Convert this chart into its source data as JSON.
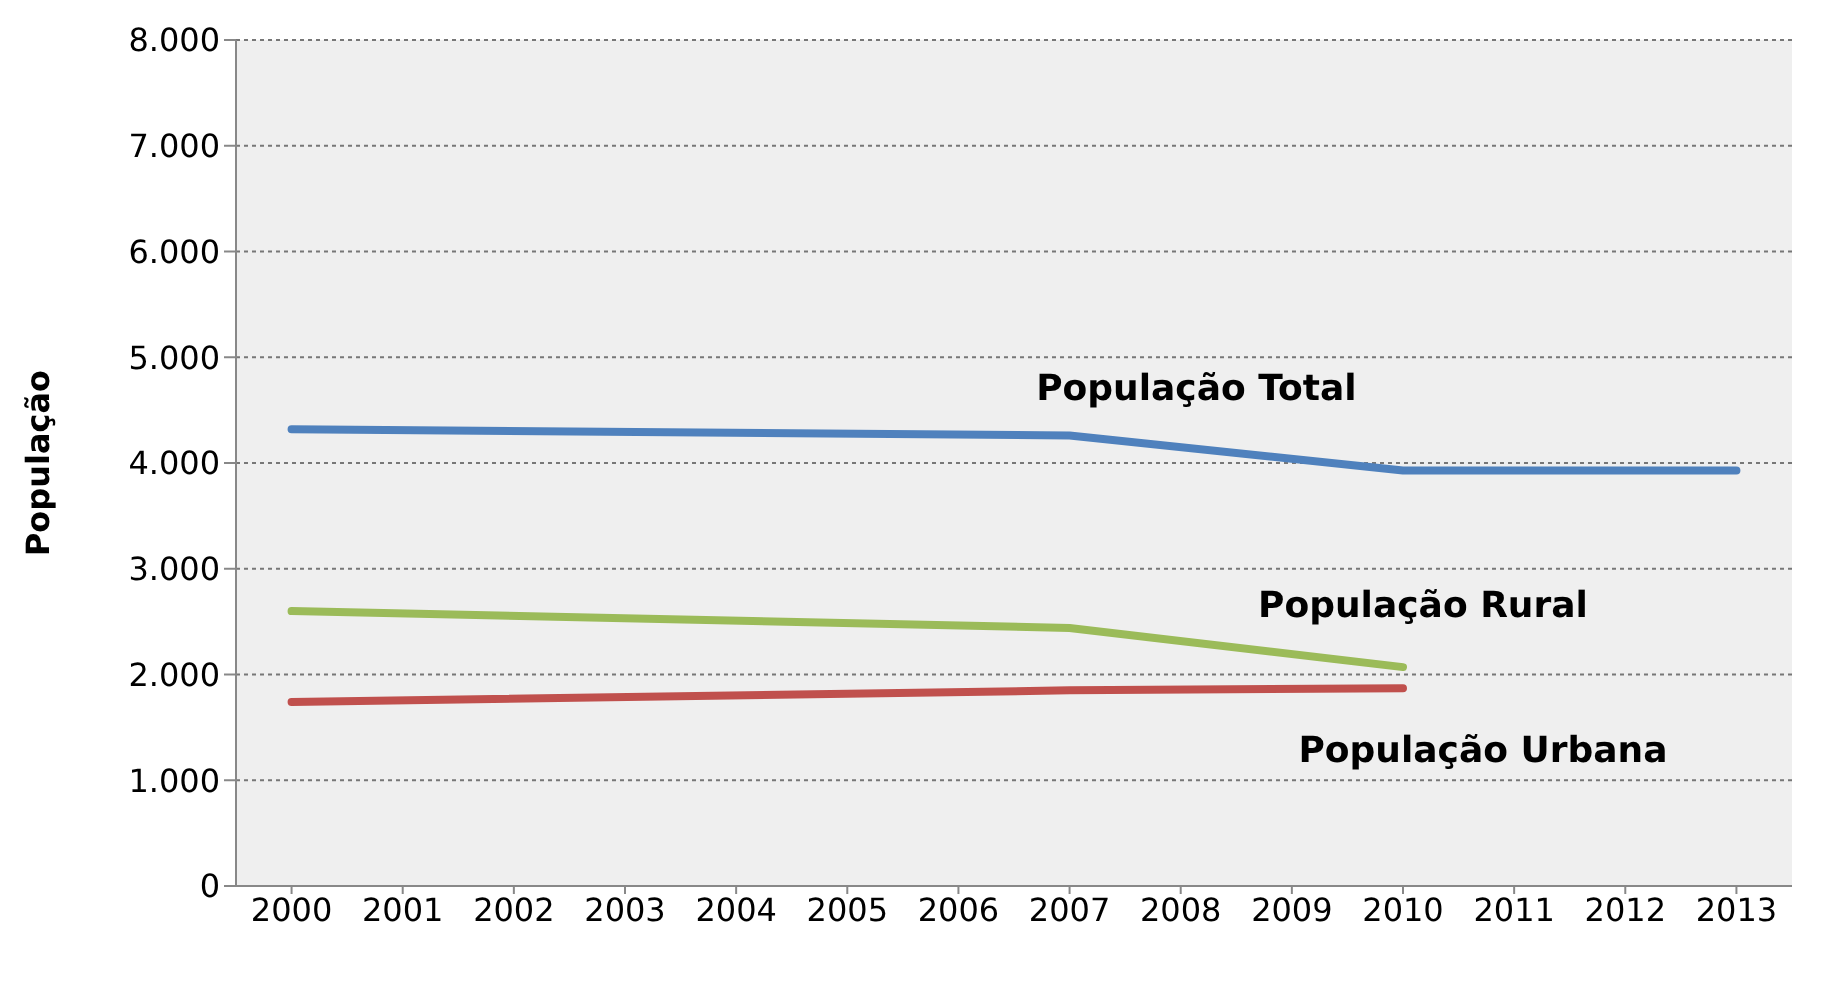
{
  "chart_data": {
    "type": "line",
    "ylabel": "População",
    "xlim": [
      1999.5,
      2013.5
    ],
    "xticks": [
      2000,
      2001,
      2002,
      2003,
      2004,
      2005,
      2006,
      2007,
      2008,
      2009,
      2010,
      2011,
      2012,
      2013
    ],
    "ylim": [
      0,
      8000
    ],
    "yticks": [
      0,
      {
        "value": 1000,
        "label": "1.000"
      },
      {
        "value": 2000,
        "label": "2.000"
      },
      {
        "value": 3000,
        "label": "3.000"
      },
      {
        "value": 4000,
        "label": "4.000"
      },
      {
        "value": 5000,
        "label": "5.000"
      },
      {
        "value": 6000,
        "label": "6.000"
      },
      {
        "value": 7000,
        "label": "7.000"
      },
      {
        "value": 8000,
        "label": "8.000"
      }
    ],
    "series": [
      {
        "name": "População Total",
        "color": "#4f81bd",
        "x": [
          2000,
          2007,
          2010,
          2013
        ],
        "values": [
          4320,
          4260,
          3930,
          3930
        ]
      },
      {
        "name": "População Rural",
        "color": "#9bbb59",
        "x": [
          2000,
          2007,
          2010
        ],
        "values": [
          2600,
          2440,
          2070
        ]
      },
      {
        "name": "População Urbana",
        "color": "#c0504d",
        "x": [
          2000,
          2007,
          2010
        ],
        "values": [
          1740,
          1850,
          1870
        ]
      }
    ],
    "grid": "y",
    "legend": false,
    "marker": "none",
    "line_style": "solid"
  }
}
